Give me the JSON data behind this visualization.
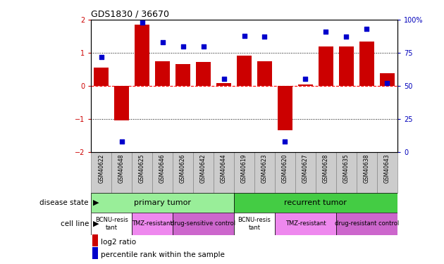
{
  "title": "GDS1830 / 36670",
  "samples": [
    "GSM40622",
    "GSM40648",
    "GSM40625",
    "GSM40646",
    "GSM40626",
    "GSM40642",
    "GSM40644",
    "GSM40619",
    "GSM40623",
    "GSM40620",
    "GSM40627",
    "GSM40628",
    "GSM40635",
    "GSM40638",
    "GSM40643"
  ],
  "log2_ratio": [
    0.55,
    -1.05,
    1.85,
    0.75,
    0.65,
    0.72,
    0.08,
    0.92,
    0.75,
    -1.35,
    0.05,
    1.2,
    1.2,
    1.35,
    0.38
  ],
  "percentile_rank": [
    72,
    8,
    98,
    83,
    80,
    80,
    55,
    88,
    87,
    8,
    55,
    91,
    87,
    93,
    52
  ],
  "bar_color": "#cc0000",
  "dot_color": "#0000cc",
  "ylim_left": [
    -2.0,
    2.0
  ],
  "ylim_right": [
    0,
    100
  ],
  "yticks_left": [
    -2,
    -1,
    0,
    1,
    2
  ],
  "yticks_right": [
    0,
    25,
    50,
    75,
    100
  ],
  "disease_state_groups": [
    {
      "label": "primary tumor",
      "start": 0,
      "end": 6,
      "color": "#99ee99"
    },
    {
      "label": "recurrent tumor",
      "start": 7,
      "end": 14,
      "color": "#44cc44"
    }
  ],
  "cell_line_groups": [
    {
      "label": "BCNU-resis\ntant",
      "start": 0,
      "end": 1,
      "color": "#ffffff"
    },
    {
      "label": "TMZ-resistant",
      "start": 2,
      "end": 3,
      "color": "#ee88ee"
    },
    {
      "label": "drug-sensitive control",
      "start": 4,
      "end": 6,
      "color": "#cc66cc"
    },
    {
      "label": "BCNU-resis\ntant",
      "start": 7,
      "end": 8,
      "color": "#ffffff"
    },
    {
      "label": "TMZ-resistant",
      "start": 9,
      "end": 11,
      "color": "#ee88ee"
    },
    {
      "label": "drug-resistant control",
      "start": 12,
      "end": 14,
      "color": "#cc66cc"
    }
  ],
  "right_axis_color": "#0000bb",
  "sample_cell_color": "#cccccc",
  "sample_cell_edge": "#888888"
}
